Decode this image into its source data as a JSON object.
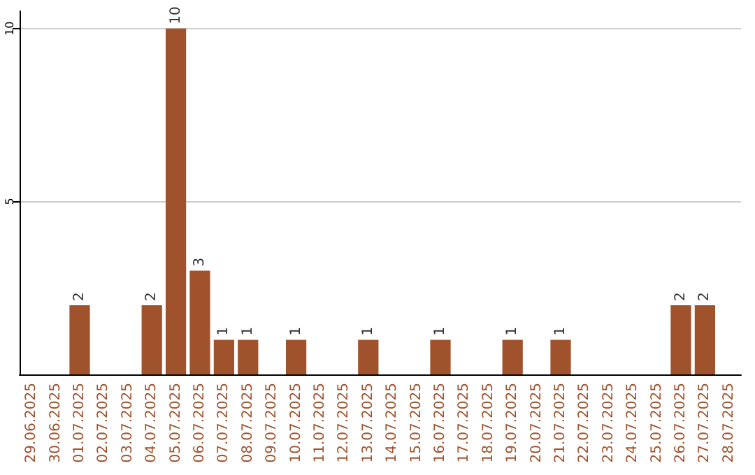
{
  "chart_data": {
    "type": "bar",
    "categories": [
      "29.06.2025",
      "30.06.2025",
      "01.07.2025",
      "02.07.2025",
      "03.07.2025",
      "04.07.2025",
      "05.07.2025",
      "06.07.2025",
      "07.07.2025",
      "08.07.2025",
      "09.07.2025",
      "10.07.2025",
      "11.07.2025",
      "12.07.2025",
      "13.07.2025",
      "14.07.2025",
      "15.07.2025",
      "16.07.2025",
      "17.07.2025",
      "18.07.2025",
      "19.07.2025",
      "20.07.2025",
      "21.07.2025",
      "22.07.2025",
      "23.07.2025",
      "24.07.2025",
      "25.07.2025",
      "26.07.2025",
      "27.07.2025",
      "28.07.2025"
    ],
    "values": [
      0,
      0,
      2,
      0,
      0,
      2,
      10,
      3,
      1,
      1,
      0,
      1,
      0,
      0,
      1,
      0,
      0,
      1,
      0,
      0,
      1,
      0,
      1,
      0,
      0,
      0,
      0,
      2,
      2,
      0
    ],
    "value_labels": [
      null,
      null,
      "2",
      null,
      null,
      "2",
      "10",
      "3",
      "1",
      "1",
      null,
      "1",
      null,
      null,
      "1",
      null,
      null,
      "1",
      null,
      null,
      "1",
      null,
      "1",
      null,
      null,
      null,
      null,
      "2",
      "2",
      null
    ],
    "color": "#a0522d",
    "ylim": [
      0,
      10.5
    ],
    "yticks": [
      5,
      10
    ],
    "grid": "y"
  }
}
